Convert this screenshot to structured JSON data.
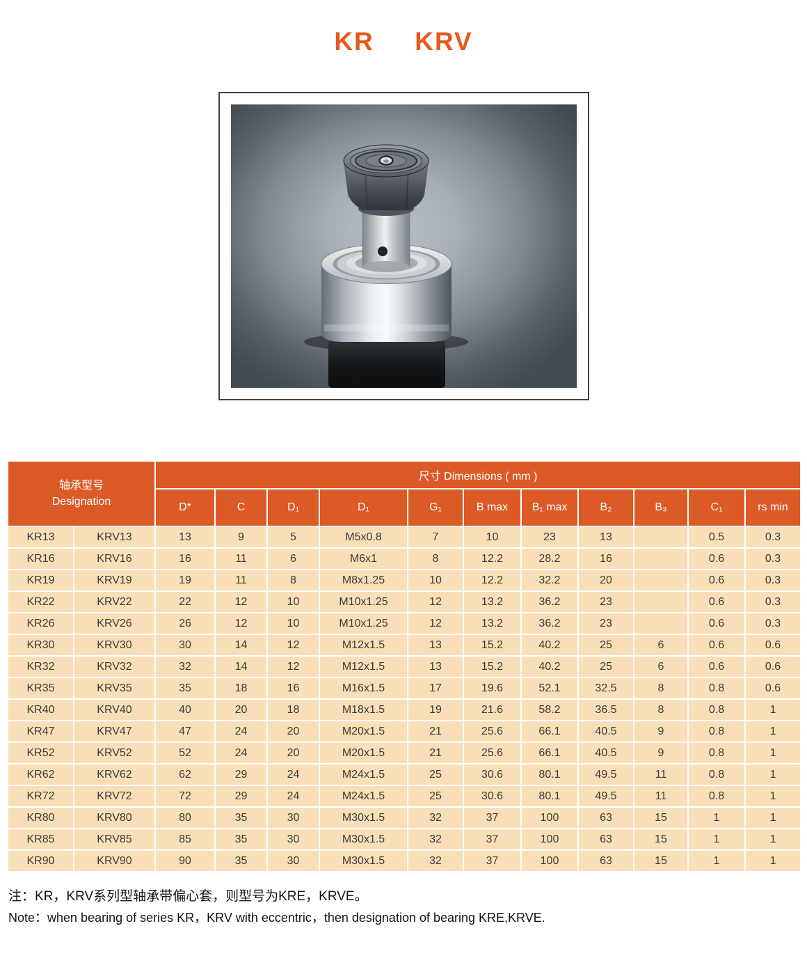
{
  "title": {
    "kr": "KR",
    "krv": "KRV"
  },
  "photo": {
    "name": "cam-follower-bearing-photo"
  },
  "table": {
    "designation_zh": "轴承型号",
    "designation_en": "Designation",
    "dimensions_label": "尺寸  Dimensions ( mm )",
    "columns": [
      "D*",
      "C",
      "D₁",
      "D₁",
      "G₁",
      "B max",
      "B₁ max",
      "B₂",
      "B₃",
      "C₁",
      "rs min"
    ],
    "rows": [
      {
        "kr": "KR13",
        "krv": "KRV13",
        "values": [
          "13",
          "9",
          "5",
          "M5x0.8",
          "7",
          "10",
          "23",
          "13",
          "",
          "0.5",
          "0.3"
        ]
      },
      {
        "kr": "KR16",
        "krv": "KRV16",
        "values": [
          "16",
          "11",
          "6",
          "M6x1",
          "8",
          "12.2",
          "28.2",
          "16",
          "",
          "0.6",
          "0.3"
        ]
      },
      {
        "kr": "KR19",
        "krv": "KRV19",
        "values": [
          "19",
          "11",
          "8",
          "M8x1.25",
          "10",
          "12.2",
          "32.2",
          "20",
          "",
          "0.6",
          "0.3"
        ]
      },
      {
        "kr": "KR22",
        "krv": "KRV22",
        "values": [
          "22",
          "12",
          "10",
          "M10x1.25",
          "12",
          "13.2",
          "36.2",
          "23",
          "",
          "0.6",
          "0.3"
        ]
      },
      {
        "kr": "KR26",
        "krv": "KRV26",
        "values": [
          "26",
          "12",
          "10",
          "M10x1.25",
          "12",
          "13.2",
          "36.2",
          "23",
          "",
          "0.6",
          "0.3"
        ]
      },
      {
        "kr": "KR30",
        "krv": "KRV30",
        "values": [
          "30",
          "14",
          "12",
          "M12x1.5",
          "13",
          "15.2",
          "40.2",
          "25",
          "6",
          "0.6",
          "0.6"
        ]
      },
      {
        "kr": "KR32",
        "krv": "KRV32",
        "values": [
          "32",
          "14",
          "12",
          "M12x1.5",
          "13",
          "15.2",
          "40.2",
          "25",
          "6",
          "0.6",
          "0.6"
        ]
      },
      {
        "kr": "KR35",
        "krv": "KRV35",
        "values": [
          "35",
          "18",
          "16",
          "M16x1.5",
          "17",
          "19.6",
          "52.1",
          "32.5",
          "8",
          "0.8",
          "0.6"
        ]
      },
      {
        "kr": "KR40",
        "krv": "KRV40",
        "values": [
          "40",
          "20",
          "18",
          "M18x1.5",
          "19",
          "21.6",
          "58.2",
          "36.5",
          "8",
          "0.8",
          "1"
        ]
      },
      {
        "kr": "KR47",
        "krv": "KRV47",
        "values": [
          "47",
          "24",
          "20",
          "M20x1.5",
          "21",
          "25.6",
          "66.1",
          "40.5",
          "9",
          "0.8",
          "1"
        ]
      },
      {
        "kr": "KR52",
        "krv": "KRV52",
        "values": [
          "52",
          "24",
          "20",
          "M20x1.5",
          "21",
          "25.6",
          "66.1",
          "40.5",
          "9",
          "0.8",
          "1"
        ]
      },
      {
        "kr": "KR62",
        "krv": "KRV62",
        "values": [
          "62",
          "29",
          "24",
          "M24x1.5",
          "25",
          "30.6",
          "80.1",
          "49.5",
          "11",
          "0.8",
          "1"
        ]
      },
      {
        "kr": "KR72",
        "krv": "KRV72",
        "values": [
          "72",
          "29",
          "24",
          "M24x1.5",
          "25",
          "30.6",
          "80.1",
          "49.5",
          "11",
          "0.8",
          "1"
        ]
      },
      {
        "kr": "KR80",
        "krv": "KRV80",
        "values": [
          "80",
          "35",
          "30",
          "M30x1.5",
          "32",
          "37",
          "100",
          "63",
          "15",
          "1",
          "1"
        ]
      },
      {
        "kr": "KR85",
        "krv": "KRV85",
        "values": [
          "85",
          "35",
          "30",
          "M30x1.5",
          "32",
          "37",
          "100",
          "63",
          "15",
          "1",
          "1"
        ]
      },
      {
        "kr": "KR90",
        "krv": "KRV90",
        "values": [
          "90",
          "35",
          "30",
          "M30x1.5",
          "32",
          "37",
          "100",
          "63",
          "15",
          "1",
          "1"
        ]
      }
    ]
  },
  "notes": {
    "zh": "注：KR，KRV系列型轴承带偏心套，则型号为KRE，KRVE。",
    "en": "Note：when bearing of series KR，KRV with eccentric，then designation of bearing KRE,KRVE."
  },
  "colors": {
    "accent_orange": "#dc5a26",
    "title_orange": "#e7581e",
    "row_tan": "#f8dfb8"
  }
}
